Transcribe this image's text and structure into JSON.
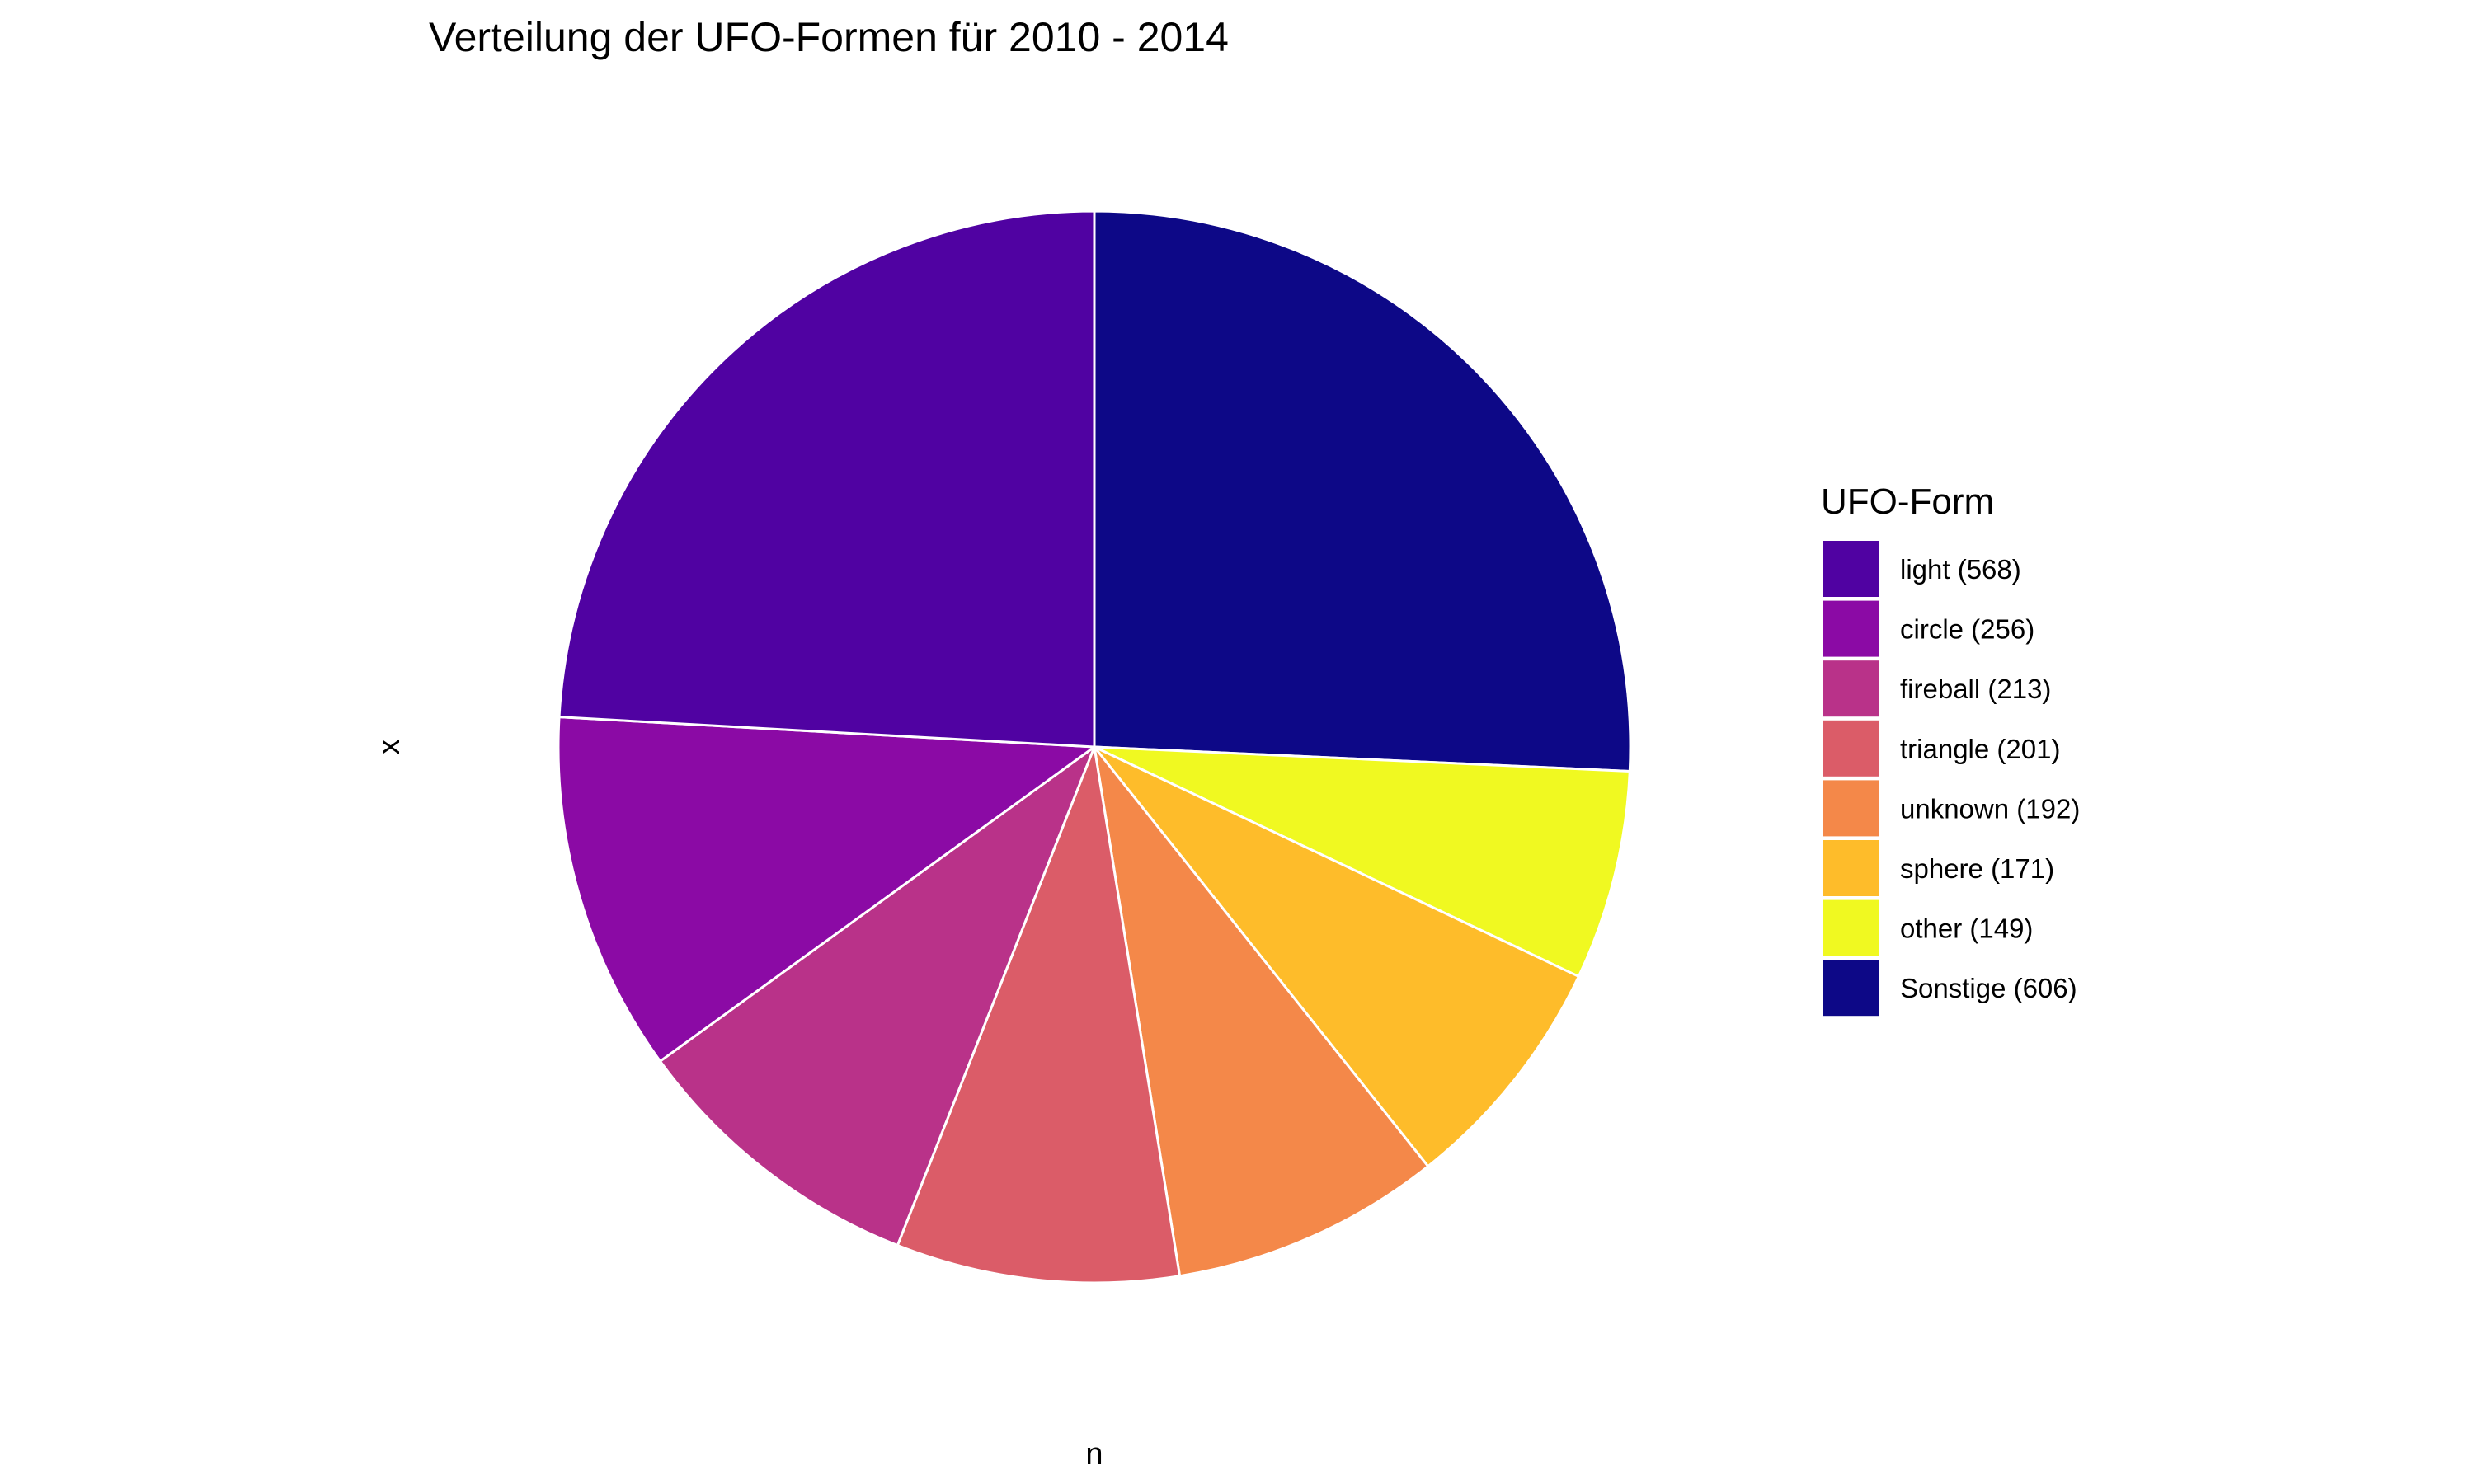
{
  "chart_data": {
    "type": "pie",
    "title": "Verteilung der UFO-Formen für 2010 - 2014",
    "xlabel": "n",
    "ylabel": "x",
    "legend_title": "UFO-Form",
    "legend_position": "right",
    "grid": false,
    "start_angle_deg": 0,
    "direction": "clockwise",
    "slice_order": [
      "Sonstige",
      "other",
      "sphere",
      "unknown",
      "triangle",
      "fireball",
      "circle",
      "light"
    ],
    "categories": [
      "light",
      "circle",
      "fireball",
      "triangle",
      "unknown",
      "sphere",
      "other",
      "Sonstige"
    ],
    "legend_labels": [
      "light (568)",
      "circle (256)",
      "fireball (213)",
      "triangle (201)",
      "unknown (192)",
      "sphere (171)",
      "other (149)",
      "Sonstige (606)"
    ],
    "values": [
      568,
      256,
      213,
      201,
      192,
      171,
      149,
      606
    ],
    "colors": [
      "#5002A2",
      "#8B0AA5",
      "#B93289",
      "#DB5C68",
      "#F48849",
      "#FEBC2A",
      "#F0F921",
      "#0D0887"
    ]
  }
}
